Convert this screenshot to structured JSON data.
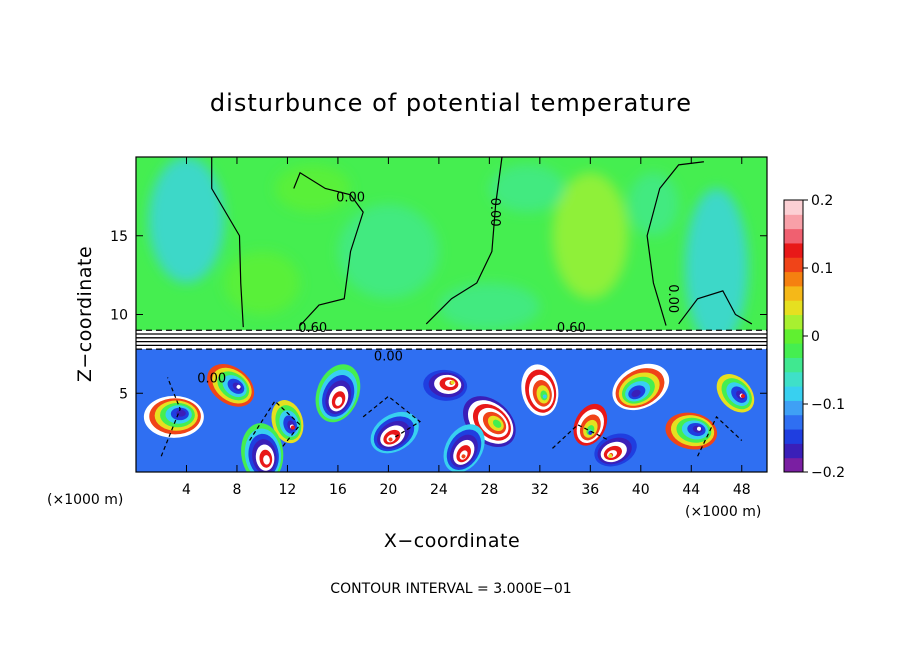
{
  "chart_data": {
    "type": "heatmap",
    "title": "disturbunce of potential temperature",
    "xlabel": "X−coordinate",
    "ylabel": "Z−coordinate",
    "x_unit_left": "(×1000 m)",
    "x_unit_right": "(×1000 m)",
    "xlim": [
      0,
      50
    ],
    "ylim": [
      0,
      20
    ],
    "xticks": [
      4,
      8,
      12,
      16,
      20,
      24,
      28,
      32,
      36,
      40,
      44,
      48
    ],
    "yticks": [
      5,
      10,
      15
    ],
    "colorbar": {
      "range": [
        -0.2,
        0.2
      ],
      "ticks": [
        {
          "value": 0.2,
          "label": "0.2"
        },
        {
          "value": 0.1,
          "label": "0.1"
        },
        {
          "value": 0,
          "label": "0"
        },
        {
          "value": -0.1,
          "label": "−0.1"
        },
        {
          "value": -0.2,
          "label": "−0.2"
        }
      ],
      "colors": [
        "#7a1fa2",
        "#3a1fb8",
        "#1f3ee0",
        "#2f6ff2",
        "#3fa0f5",
        "#38d0f0",
        "#3fe0c8",
        "#40e890",
        "#45ee50",
        "#60f030",
        "#a8f030",
        "#e6e020",
        "#f5b818",
        "#f58010",
        "#f04418",
        "#e81818",
        "#f06070",
        "#f8a0a8",
        "#fcd0d4"
      ]
    },
    "contour_labels": [
      {
        "x": 17.0,
        "y": 17.4,
        "text": "0.00"
      },
      {
        "x": 28.4,
        "y": 16.5,
        "text": "0.00",
        "rotate": true
      },
      {
        "x": 42.5,
        "y": 11.0,
        "text": "0.00",
        "rotate": true
      },
      {
        "x": 14.0,
        "y": 9.1,
        "text": "0.60"
      },
      {
        "x": 34.5,
        "y": 9.1,
        "text": "0.60"
      },
      {
        "x": 6.0,
        "y": 5.9,
        "text": "0.00"
      },
      {
        "x": 20.0,
        "y": 7.3,
        "text": "0.00"
      }
    ],
    "inversion_layer": {
      "z_bottom": 7.8,
      "z_top": 9.0
    }
  },
  "footer": {
    "contour_interval": "CONTOUR INTERVAL = 3.000E−01"
  }
}
